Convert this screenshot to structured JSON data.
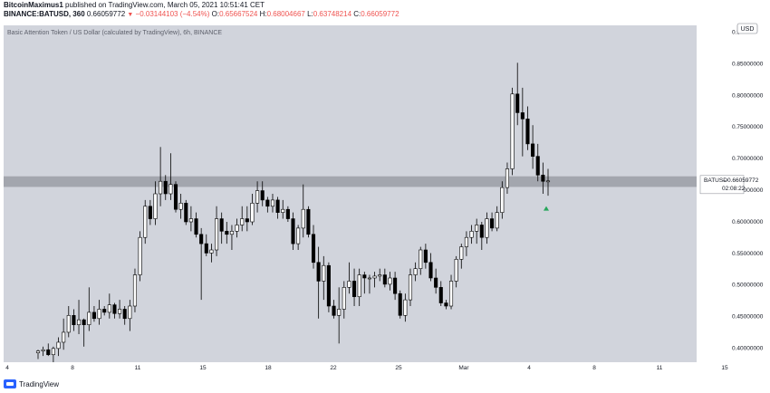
{
  "header": {
    "author": "BitcoinMaximus1",
    "published_text": "published on TradingView.com, March 05, 2021 10:51:41 CET",
    "symbol": "BINANCE:BATUSD, 360",
    "last_price": "0.66059772",
    "change": "−0.03144103 (−4.54%)",
    "open_label": "O:",
    "open": "0.65667524",
    "high_label": "H:",
    "high": "0.68004667",
    "low_label": "L:",
    "low": "0.63748214",
    "close_label": "C:",
    "close": "0.66059772"
  },
  "chart": {
    "title": "Basic Attention Token / US Dollar (calculated by TradingView), 6h, BINANCE",
    "currency": "USD",
    "price_tag_symbol": "BATUSD",
    "price_tag_value": "0.66059772",
    "countdown": "02:08:22",
    "y_ticks": [
      "0.9",
      "0.85000000",
      "0.80000000",
      "0.75000000",
      "0.70000000",
      "0.65000000",
      "0.60000000",
      "0.55000000",
      "0.50000000",
      "0.45000000",
      "0.40000000"
    ],
    "x_ticks": [
      "4",
      "8",
      "11",
      "15",
      "18",
      "22",
      "25",
      "Mar",
      "4",
      "8",
      "11",
      "15"
    ],
    "colors": {
      "plot_bg": "#d1d4dc",
      "zone": "#a3a6ae",
      "candle_up": "#ffffff",
      "candle_down": "#000000",
      "arrow": "#26a65b"
    }
  },
  "chart_data": {
    "type": "candlestick",
    "title": "Basic Attention Token / US Dollar (calculated by TradingView), 6h, BINANCE",
    "ylim": [
      0.37,
      0.91
    ],
    "categories": [
      "4",
      "8",
      "11",
      "15",
      "18",
      "22",
      "25",
      "Mar",
      "4",
      "8",
      "11",
      "15"
    ],
    "resistance_zone": [
      0.651,
      0.668
    ],
    "last_close": 0.66059772,
    "ohlc": [
      [
        0.385,
        0.39,
        0.375,
        0.388
      ],
      [
        0.388,
        0.395,
        0.38,
        0.39
      ],
      [
        0.39,
        0.4,
        0.38,
        0.382
      ],
      [
        0.382,
        0.395,
        0.37,
        0.392
      ],
      [
        0.392,
        0.41,
        0.38,
        0.402
      ],
      [
        0.402,
        0.44,
        0.39,
        0.418
      ],
      [
        0.418,
        0.46,
        0.41,
        0.445
      ],
      [
        0.445,
        0.455,
        0.42,
        0.43
      ],
      [
        0.43,
        0.47,
        0.415,
        0.438
      ],
      [
        0.438,
        0.44,
        0.395,
        0.43
      ],
      [
        0.43,
        0.49,
        0.42,
        0.45
      ],
      [
        0.45,
        0.46,
        0.435,
        0.44
      ],
      [
        0.44,
        0.47,
        0.43,
        0.455
      ],
      [
        0.455,
        0.46,
        0.445,
        0.45
      ],
      [
        0.45,
        0.48,
        0.44,
        0.462
      ],
      [
        0.462,
        0.465,
        0.44,
        0.448
      ],
      [
        0.448,
        0.47,
        0.44,
        0.455
      ],
      [
        0.455,
        0.46,
        0.43,
        0.44
      ],
      [
        0.44,
        0.47,
        0.42,
        0.46
      ],
      [
        0.46,
        0.52,
        0.45,
        0.51
      ],
      [
        0.51,
        0.58,
        0.5,
        0.57
      ],
      [
        0.57,
        0.63,
        0.56,
        0.62
      ],
      [
        0.62,
        0.63,
        0.59,
        0.6
      ],
      [
        0.6,
        0.66,
        0.59,
        0.64
      ],
      [
        0.64,
        0.715,
        0.62,
        0.66
      ],
      [
        0.66,
        0.67,
        0.63,
        0.64
      ],
      [
        0.64,
        0.705,
        0.63,
        0.655
      ],
      [
        0.655,
        0.66,
        0.61,
        0.615
      ],
      [
        0.615,
        0.64,
        0.6,
        0.625
      ],
      [
        0.625,
        0.63,
        0.59,
        0.595
      ],
      [
        0.595,
        0.62,
        0.58,
        0.6
      ],
      [
        0.6,
        0.61,
        0.57,
        0.575
      ],
      [
        0.575,
        0.585,
        0.47,
        0.56
      ],
      [
        0.56,
        0.575,
        0.54,
        0.545
      ],
      [
        0.545,
        0.56,
        0.53,
        0.55
      ],
      [
        0.55,
        0.62,
        0.54,
        0.6
      ],
      [
        0.6,
        0.61,
        0.56,
        0.58
      ],
      [
        0.58,
        0.595,
        0.56,
        0.575
      ],
      [
        0.575,
        0.59,
        0.55,
        0.58
      ],
      [
        0.58,
        0.6,
        0.57,
        0.59
      ],
      [
        0.59,
        0.62,
        0.58,
        0.6
      ],
      [
        0.6,
        0.62,
        0.58,
        0.595
      ],
      [
        0.595,
        0.64,
        0.59,
        0.625
      ],
      [
        0.625,
        0.66,
        0.61,
        0.645
      ],
      [
        0.645,
        0.66,
        0.62,
        0.63
      ],
      [
        0.63,
        0.635,
        0.61,
        0.62
      ],
      [
        0.62,
        0.64,
        0.61,
        0.63
      ],
      [
        0.63,
        0.635,
        0.6,
        0.61
      ],
      [
        0.61,
        0.63,
        0.6,
        0.615
      ],
      [
        0.615,
        0.62,
        0.595,
        0.6
      ],
      [
        0.6,
        0.61,
        0.55,
        0.56
      ],
      [
        0.56,
        0.59,
        0.55,
        0.585
      ],
      [
        0.585,
        0.655,
        0.57,
        0.615
      ],
      [
        0.615,
        0.62,
        0.57,
        0.575
      ],
      [
        0.575,
        0.59,
        0.52,
        0.53
      ],
      [
        0.53,
        0.555,
        0.44,
        0.5
      ],
      [
        0.5,
        0.54,
        0.47,
        0.525
      ],
      [
        0.525,
        0.53,
        0.45,
        0.46
      ],
      [
        0.46,
        0.47,
        0.44,
        0.445
      ],
      [
        0.445,
        0.49,
        0.4,
        0.455
      ],
      [
        0.455,
        0.5,
        0.44,
        0.49
      ],
      [
        0.49,
        0.53,
        0.48,
        0.5
      ],
      [
        0.5,
        0.52,
        0.46,
        0.475
      ],
      [
        0.475,
        0.52,
        0.46,
        0.51
      ],
      [
        0.51,
        0.515,
        0.48,
        0.505
      ],
      [
        0.505,
        0.51,
        0.48,
        0.505
      ],
      [
        0.505,
        0.515,
        0.49,
        0.508
      ],
      [
        0.508,
        0.52,
        0.5,
        0.51
      ],
      [
        0.51,
        0.52,
        0.49,
        0.495
      ],
      [
        0.495,
        0.515,
        0.485,
        0.505
      ],
      [
        0.505,
        0.515,
        0.47,
        0.48
      ],
      [
        0.48,
        0.485,
        0.44,
        0.445
      ],
      [
        0.445,
        0.48,
        0.435,
        0.47
      ],
      [
        0.47,
        0.52,
        0.46,
        0.51
      ],
      [
        0.51,
        0.53,
        0.5,
        0.52
      ],
      [
        0.52,
        0.555,
        0.51,
        0.55
      ],
      [
        0.55,
        0.56,
        0.52,
        0.53
      ],
      [
        0.53,
        0.545,
        0.5,
        0.505
      ],
      [
        0.505,
        0.52,
        0.48,
        0.49
      ],
      [
        0.49,
        0.5,
        0.46,
        0.465
      ],
      [
        0.465,
        0.47,
        0.455,
        0.46
      ],
      [
        0.46,
        0.51,
        0.455,
        0.5
      ],
      [
        0.5,
        0.54,
        0.49,
        0.535
      ],
      [
        0.535,
        0.56,
        0.52,
        0.555
      ],
      [
        0.555,
        0.58,
        0.54,
        0.57
      ],
      [
        0.57,
        0.59,
        0.56,
        0.58
      ],
      [
        0.58,
        0.6,
        0.56,
        0.59
      ],
      [
        0.59,
        0.595,
        0.55,
        0.57
      ],
      [
        0.57,
        0.61,
        0.56,
        0.6
      ],
      [
        0.6,
        0.61,
        0.58,
        0.585
      ],
      [
        0.585,
        0.62,
        0.58,
        0.61
      ],
      [
        0.61,
        0.66,
        0.6,
        0.65
      ],
      [
        0.65,
        0.69,
        0.64,
        0.68
      ],
      [
        0.68,
        0.81,
        0.67,
        0.8
      ],
      [
        0.8,
        0.85,
        0.75,
        0.77
      ],
      [
        0.77,
        0.81,
        0.7,
        0.76
      ],
      [
        0.76,
        0.78,
        0.71,
        0.72
      ],
      [
        0.72,
        0.75,
        0.68,
        0.7
      ],
      [
        0.7,
        0.72,
        0.66,
        0.67
      ],
      [
        0.67,
        0.69,
        0.64,
        0.66
      ],
      [
        0.66,
        0.68,
        0.637,
        0.6606
      ]
    ]
  }
}
